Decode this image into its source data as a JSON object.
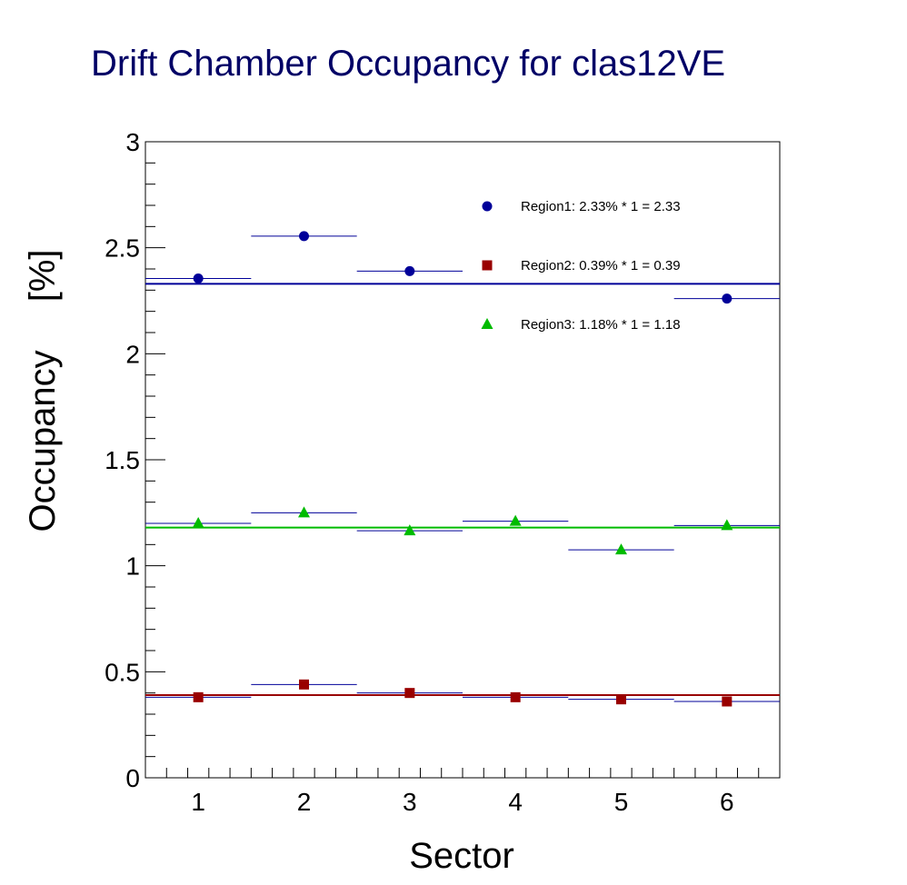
{
  "chart_data": {
    "type": "scatter",
    "title": "Drift Chamber Occupancy for clas12VE",
    "xlabel": "Sector",
    "ylabel_main": "Occupancy",
    "ylabel_unit": "[%]",
    "xlim": [
      0.5,
      6.5
    ],
    "ylim": [
      0,
      3
    ],
    "xticks": [
      "1",
      "2",
      "3",
      "4",
      "5",
      "6"
    ],
    "yticks": [
      "0",
      "0.5",
      "1",
      "1.5",
      "2",
      "2.5",
      "3"
    ],
    "grid": false,
    "legend_position": "top-right",
    "series": [
      {
        "name": "Region1: 2.33% * 1 = 2.33",
        "marker": "circle",
        "color": "#000099",
        "x": [
          1,
          2,
          3,
          6
        ],
        "values": [
          2.355,
          2.555,
          2.39,
          2.26
        ],
        "average": 2.33
      },
      {
        "name": "Region2: 0.39% * 1 = 0.39",
        "marker": "square",
        "color": "#990000",
        "x": [
          1,
          2,
          3,
          4,
          5,
          6
        ],
        "values": [
          0.38,
          0.44,
          0.4,
          0.38,
          0.37,
          0.36
        ],
        "average": 0.39
      },
      {
        "name": "Region3: 1.18% * 1 = 1.18",
        "marker": "triangle",
        "color": "#00bb00",
        "x": [
          1,
          2,
          3,
          4,
          5,
          6
        ],
        "values": [
          1.2,
          1.25,
          1.165,
          1.21,
          1.075,
          1.19
        ],
        "average": 1.18
      }
    ]
  },
  "colors": {
    "title": "#000066",
    "axis": "#000000",
    "bin_line": "#000099"
  }
}
